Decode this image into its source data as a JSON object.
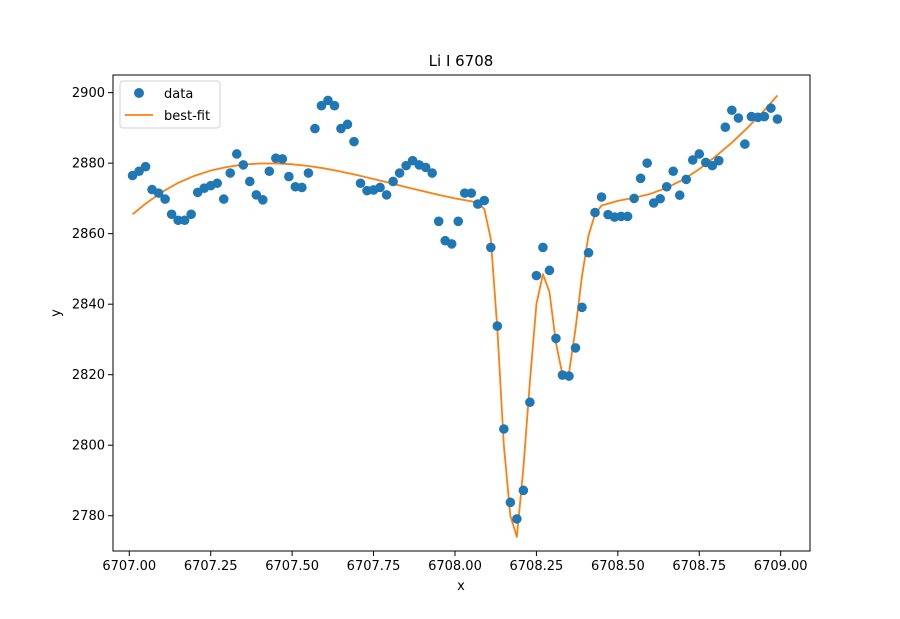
{
  "chart_data": {
    "type": "scatter",
    "title": "Li I 6708",
    "xlabel": "x",
    "ylabel": "y",
    "xlim": [
      6706.95,
      6709.09
    ],
    "ylim": [
      2770,
      2905
    ],
    "xticks": [
      6707.0,
      6707.25,
      6707.5,
      6707.75,
      6708.0,
      6708.25,
      6708.5,
      6708.75,
      6709.0
    ],
    "xtick_labels": [
      "6707.00",
      "6707.25",
      "6707.50",
      "6707.75",
      "6708.00",
      "6708.25",
      "6708.50",
      "6708.75",
      "6709.00"
    ],
    "yticks": [
      2780,
      2800,
      2820,
      2840,
      2860,
      2880,
      2900
    ],
    "ytick_labels": [
      "2780",
      "2800",
      "2820",
      "2840",
      "2860",
      "2880",
      "2900"
    ],
    "grid": false,
    "legend": {
      "position": "top-left"
    },
    "colors": {
      "data": "#1f77b4",
      "fit": "#ff7f0e"
    },
    "series": [
      {
        "name": "data",
        "type": "scatter",
        "x": [
          6707.01,
          6707.03,
          6707.05,
          6707.07,
          6707.09,
          6707.11,
          6707.13,
          6707.15,
          6707.17,
          6707.19,
          6707.21,
          6707.23,
          6707.25,
          6707.27,
          6707.29,
          6707.31,
          6707.33,
          6707.35,
          6707.37,
          6707.39,
          6707.41,
          6707.43,
          6707.45,
          6707.47,
          6707.49,
          6707.51,
          6707.53,
          6707.55,
          6707.57,
          6707.59,
          6707.61,
          6707.63,
          6707.65,
          6707.67,
          6707.69,
          6707.71,
          6707.73,
          6707.75,
          6707.77,
          6707.79,
          6707.81,
          6707.83,
          6707.85,
          6707.87,
          6707.89,
          6707.91,
          6707.93,
          6707.95,
          6707.97,
          6707.99,
          6708.01,
          6708.03,
          6708.05,
          6708.07,
          6708.09,
          6708.11,
          6708.13,
          6708.15,
          6708.17,
          6708.19,
          6708.21,
          6708.23,
          6708.25,
          6708.27,
          6708.29,
          6708.31,
          6708.33,
          6708.35,
          6708.37,
          6708.39,
          6708.41,
          6708.43,
          6708.45,
          6708.47,
          6708.49,
          6708.51,
          6708.53,
          6708.55,
          6708.57,
          6708.59,
          6708.61,
          6708.63,
          6708.65,
          6708.67,
          6708.69,
          6708.71,
          6708.73,
          6708.75,
          6708.77,
          6708.79,
          6708.81,
          6708.83,
          6708.85,
          6708.87,
          6708.89,
          6708.91,
          6708.93,
          6708.95,
          6708.97,
          6708.99
        ],
        "y": [
          2876.5,
          2877.7,
          2879.0,
          2872.5,
          2871.5,
          2869.8,
          2865.5,
          2863.8,
          2863.8,
          2865.5,
          2871.7,
          2872.9,
          2873.6,
          2874.3,
          2869.8,
          2877.2,
          2882.6,
          2879.5,
          2874.8,
          2871.0,
          2869.6,
          2877.7,
          2881.4,
          2881.2,
          2876.2,
          2873.3,
          2873.1,
          2877.2,
          2889.8,
          2896.3,
          2897.8,
          2896.3,
          2889.8,
          2891.0,
          2886.1,
          2874.3,
          2872.2,
          2872.4,
          2873.1,
          2871.0,
          2874.8,
          2877.2,
          2879.3,
          2880.7,
          2879.5,
          2878.8,
          2877.2,
          2863.5,
          2858.0,
          2857.1,
          2863.5,
          2871.5,
          2871.5,
          2868.4,
          2869.4,
          2856.1,
          2833.8,
          2804.6,
          2783.8,
          2779.1,
          2787.2,
          2812.2,
          2848.1,
          2856.1,
          2849.6,
          2830.3,
          2819.9,
          2819.6,
          2827.6,
          2839.1,
          2854.6,
          2866.0,
          2870.4,
          2865.4,
          2864.7,
          2864.9,
          2864.9,
          2870.0,
          2875.7,
          2880.0,
          2868.7,
          2869.9,
          2873.3,
          2877.7,
          2870.9,
          2875.4,
          2880.9,
          2882.6,
          2880.2,
          2879.3,
          2880.7,
          2890.2,
          2895.0,
          2892.8,
          2885.4,
          2893.2,
          2893.0,
          2893.2,
          2895.6,
          2892.5
        ]
      },
      {
        "name": "best-fit",
        "type": "line",
        "x": [
          6707.01,
          6707.05,
          6707.1,
          6707.15,
          6707.2,
          6707.25,
          6707.3,
          6707.35,
          6707.4,
          6707.45,
          6707.5,
          6707.55,
          6707.6,
          6707.65,
          6707.7,
          6707.75,
          6707.8,
          6707.85,
          6707.9,
          6707.95,
          6708.0,
          6708.03,
          6708.05,
          6708.07,
          6708.09,
          6708.11,
          6708.13,
          6708.15,
          6708.17,
          6708.19,
          6708.21,
          6708.23,
          6708.25,
          6708.27,
          6708.29,
          6708.31,
          6708.33,
          6708.35,
          6708.37,
          6708.39,
          6708.41,
          6708.43,
          6708.45,
          6708.5,
          6708.55,
          6708.6,
          6708.65,
          6708.7,
          6708.75,
          6708.8,
          6708.85,
          6708.9,
          6708.95,
          6708.99
        ],
        "y": [
          2865.5,
          2868.5,
          2871.8,
          2874.4,
          2876.4,
          2877.9,
          2878.9,
          2879.6,
          2879.9,
          2879.9,
          2879.7,
          2879.2,
          2878.5,
          2877.6,
          2876.6,
          2875.5,
          2874.4,
          2873.2,
          2872.1,
          2871.0,
          2870.0,
          2869.5,
          2869.2,
          2868.6,
          2867.0,
          2858.5,
          2833.0,
          2800.0,
          2780.0,
          2774.0,
          2793.5,
          2818.0,
          2840.0,
          2848.5,
          2843.5,
          2829.0,
          2820.0,
          2820.5,
          2833.0,
          2848.0,
          2859.5,
          2865.5,
          2868.0,
          2869.3,
          2870.2,
          2871.3,
          2873.0,
          2875.3,
          2878.3,
          2881.9,
          2885.8,
          2890.2,
          2895.0,
          2899.2
        ]
      }
    ]
  }
}
